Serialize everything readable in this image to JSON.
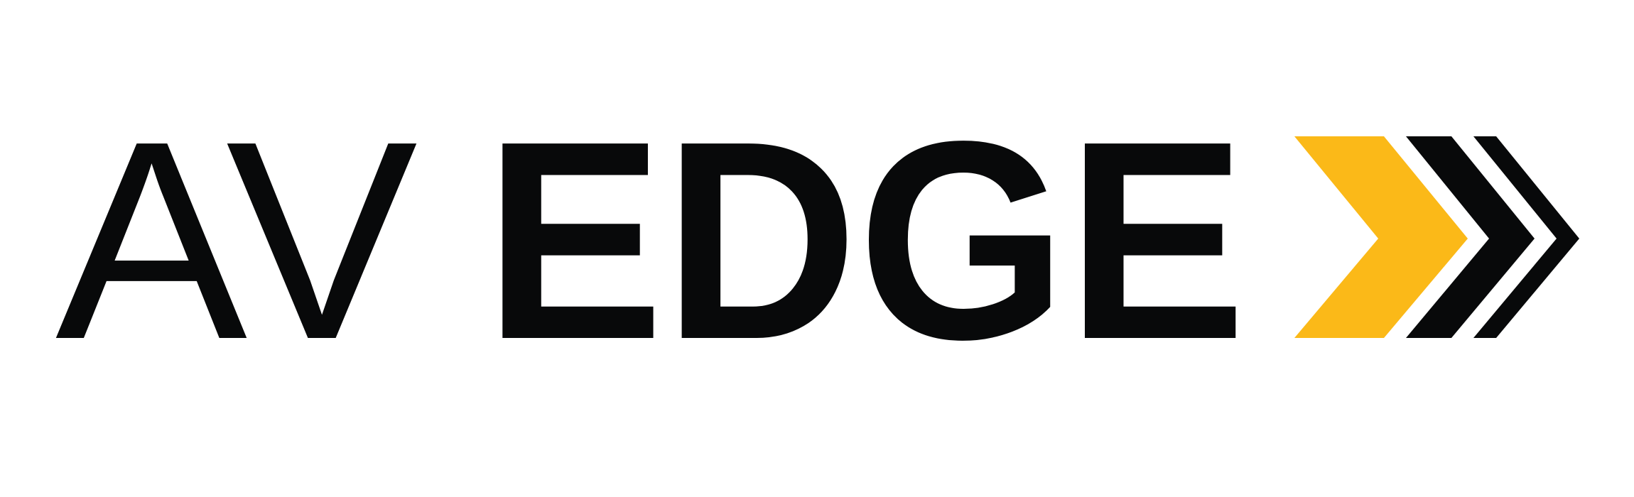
{
  "logo": {
    "prefix_text": "AV",
    "main_text": "EDGE",
    "colors": {
      "text": "#08090a",
      "accent": "#fbb918",
      "background": "#ffffff"
    },
    "chevron_icons": [
      "chevron-right-icon",
      "chevron-right-icon",
      "chevron-right-icon"
    ]
  }
}
